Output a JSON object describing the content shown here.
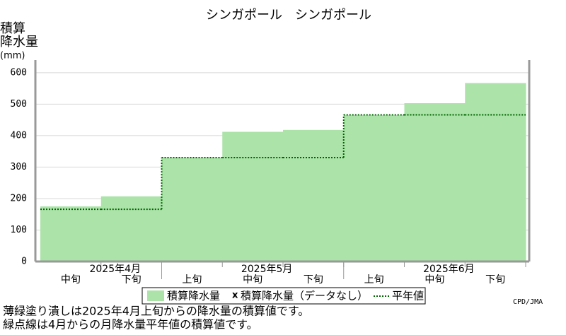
{
  "chart_data": {
    "type": "step_area",
    "title": "シンガポール　シンガポール",
    "ylabel_lines": [
      "積算",
      "降水量",
      "(mm)"
    ],
    "groups": [
      {
        "label": "2025年4月",
        "categories": [
          "中旬",
          "下旬"
        ]
      },
      {
        "label": "2025年5月",
        "categories": [
          "上旬",
          "中旬",
          "下旬"
        ]
      },
      {
        "label": "2025年6月",
        "categories": [
          "上旬",
          "中旬",
          "下旬"
        ]
      }
    ],
    "series": [
      {
        "name": "積算降水量",
        "color": "#abe3a8",
        "values": [
          175,
          207,
          330,
          412,
          418,
          465,
          503,
          567
        ]
      },
      {
        "name": "平年値",
        "color": "#006400",
        "values": [
          166,
          166,
          330,
          330,
          330,
          466,
          466,
          466
        ]
      }
    ],
    "legend_extra": {
      "marker": "x",
      "label": "積算降水量（データなし）"
    },
    "ylim": [
      0,
      640
    ],
    "yticks": [
      0,
      100,
      200,
      300,
      400,
      500,
      600
    ],
    "grid": true,
    "source": "CPD/JMA",
    "notes": [
      "薄緑塗り潰しは2025年4月上旬からの降水量の積算値です。",
      "緑点線は4月からの月降水量平年値の積算値です。"
    ]
  }
}
